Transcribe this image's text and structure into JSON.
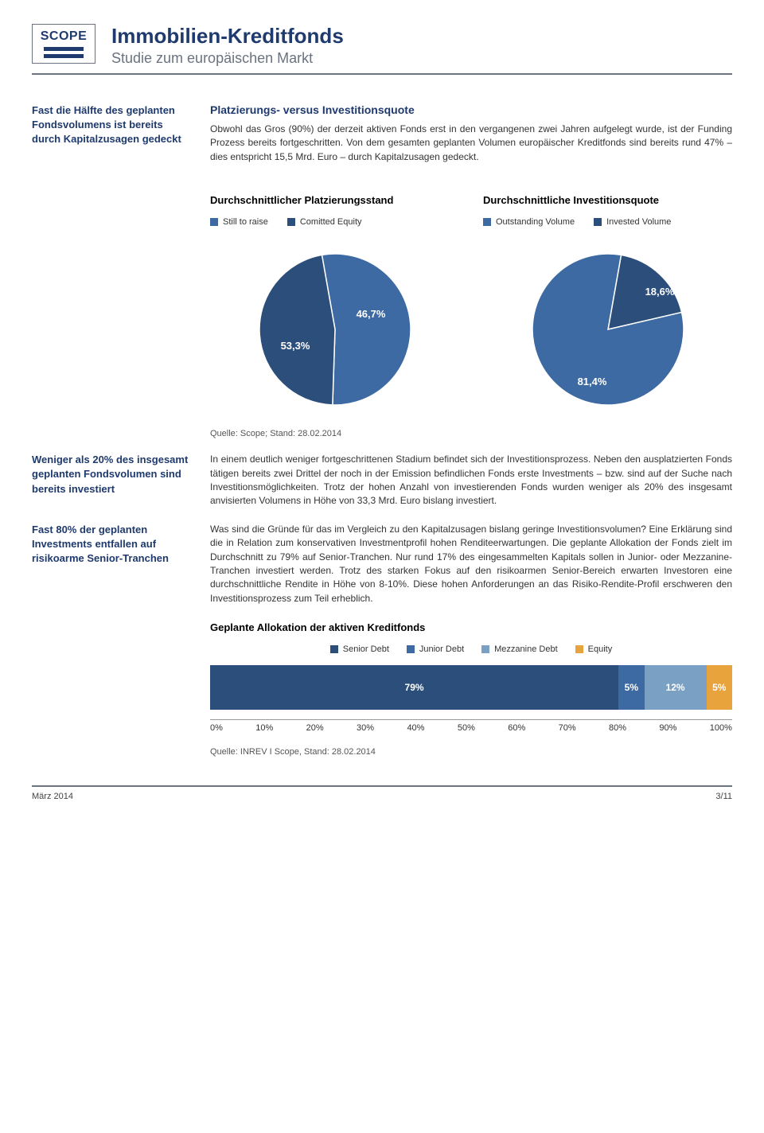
{
  "header": {
    "logo_text": "SCOPE",
    "title": "Immobilien-Kreditfonds",
    "subtitle": "Studie zum europäischen Markt"
  },
  "colors": {
    "brand": "#1f3a6e",
    "grey": "#6b7280",
    "pie_a": "#3d6aa3",
    "pie_b": "#2c4e7a",
    "bar1": "#2c4e7a",
    "bar2": "#3d6aa3",
    "bar3": "#7aa0c4",
    "bar4": "#e8a33d"
  },
  "block1": {
    "side": "Fast die Hälfte des geplanten Fondsvolumens ist bereits durch Kapitalzusagen gedeckt",
    "title": "Platzierungs- versus Investitionsquote",
    "body": "Obwohl das Gros (90%) der derzeit aktiven Fonds erst in den vergangenen zwei Jahren aufgelegt wurde, ist der Funding Prozess bereits fortgeschritten. Von dem gesamten geplanten Volumen europäischer Kreditfonds sind bereits rund 47% – dies entspricht 15,5 Mrd. Euro – durch Kapitalzusagen gedeckt."
  },
  "chart1": {
    "title": "Durchschnittlicher Platzierungsstand",
    "legend": [
      "Still to raise",
      "Comitted Equity"
    ],
    "values": [
      53.3,
      46.7
    ],
    "labels": [
      "53,3%",
      "46,7%"
    ],
    "colors": [
      "#3d6aa3",
      "#2c4e7a"
    ]
  },
  "chart2": {
    "title": "Durchschnittliche Investitionsquote",
    "legend": [
      "Outstanding Volume",
      "Invested Volume"
    ],
    "values": [
      81.4,
      18.6
    ],
    "labels": [
      "81,4%",
      "18,6%"
    ],
    "colors": [
      "#3d6aa3",
      "#2c4e7a"
    ]
  },
  "quelle1": "Quelle: Scope; Stand: 28.02.2014",
  "block2": {
    "side": "Weniger als 20% des insgesamt geplanten Fondsvolumen sind bereits investiert",
    "body": "In einem deutlich weniger fortgeschrittenen Stadium befindet sich der Investitionsprozess. Neben den ausplatzierten Fonds tätigen bereits zwei Drittel der noch in der Emission befindlichen Fonds erste Investments – bzw. sind auf der Suche nach Investitionsmöglichkeiten. Trotz der hohen Anzahl von investierenden Fonds wurden weniger als 20% des insgesamt anvisierten Volumens in Höhe von 33,3 Mrd. Euro bislang investiert."
  },
  "block3": {
    "side": "Fast 80% der geplanten Investments entfallen auf risikoarme Senior-Tranchen",
    "body": "Was sind die Gründe für das im Vergleich zu den Kapitalzusagen bislang geringe Investitionsvolumen? Eine Erklärung sind die in Relation zum konservativen Investmentprofil hohen Renditeerwartungen. Die geplante Allokation der Fonds zielt im Durchschnitt zu 79% auf Senior-Tranchen. Nur rund 17% des eingesammelten Kapitals sollen in Junior- oder Mezzanine-Tranchen investiert werden. Trotz des starken Fokus auf den risikoarmen Senior-Bereich erwarten Investoren eine durchschnittliche Rendite in Höhe von 8-10%. Diese hohen Anforderungen an das Risiko-Rendite-Profil erschweren den Investitionsprozess zum Teil erheblich."
  },
  "alloc": {
    "title": "Geplante Allokation der aktiven Kreditfonds",
    "legend": [
      "Senior Debt",
      "Junior Debt",
      "Mezzanine Debt",
      "Equity"
    ],
    "legend_colors": [
      "#2c4e7a",
      "#3d6aa3",
      "#7aa0c4",
      "#e8a33d"
    ],
    "values": [
      79,
      5,
      12,
      5
    ],
    "labels": [
      "79%",
      "5%",
      "12%",
      "5%"
    ],
    "axis": [
      "0%",
      "10%",
      "20%",
      "30%",
      "40%",
      "50%",
      "60%",
      "70%",
      "80%",
      "90%",
      "100%"
    ]
  },
  "quelle2": "Quelle: INREV I Scope, Stand: 28.02.2014",
  "footer": {
    "left": "März 2014",
    "right": "3/11"
  }
}
